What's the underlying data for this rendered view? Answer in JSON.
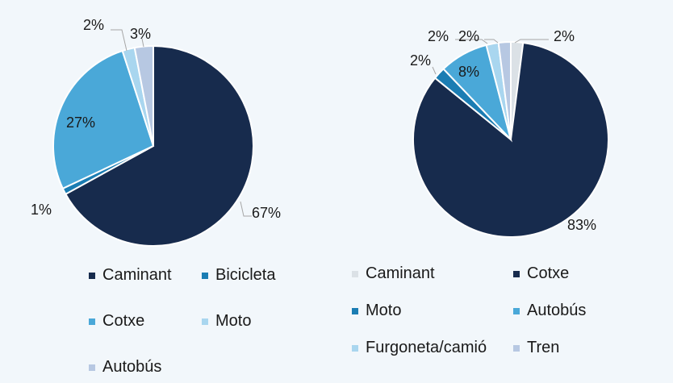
{
  "chart_data": [
    {
      "type": "pie",
      "title": "",
      "slices": [
        {
          "label": "Caminant",
          "value": 67,
          "display": "67%",
          "color": "#172b4d"
        },
        {
          "label": "Bicicleta",
          "value": 1,
          "display": "1%",
          "color": "#1b7db3"
        },
        {
          "label": "Cotxe",
          "value": 27,
          "display": "27%",
          "color": "#4aa8d8"
        },
        {
          "label": "Moto",
          "value": 2,
          "display": "2%",
          "color": "#a9d6ef"
        },
        {
          "label": "Autobús",
          "value": 3,
          "display": "3%",
          "color": "#b7c8e2"
        }
      ],
      "legend": {
        "position": "bottom",
        "columns": 2
      }
    },
    {
      "type": "pie",
      "title": "",
      "slices": [
        {
          "label": "Caminant",
          "value": 2,
          "display": "2%",
          "color": "#dbe1e6"
        },
        {
          "label": "Cotxe",
          "value": 83,
          "display": "83%",
          "color": "#172b4d"
        },
        {
          "label": "Moto",
          "value": 2,
          "display": "2%",
          "color": "#1b7db3"
        },
        {
          "label": "Autobús",
          "value": 8,
          "display": "8%",
          "color": "#4aa8d8"
        },
        {
          "label": "Furgoneta/camió",
          "value": 2,
          "display": "2%",
          "color": "#a9d6ef"
        },
        {
          "label": "Tren",
          "value": 2,
          "display": "2%",
          "color": "#b7c8e2"
        }
      ],
      "legend": {
        "position": "bottom",
        "columns": 2
      }
    }
  ]
}
